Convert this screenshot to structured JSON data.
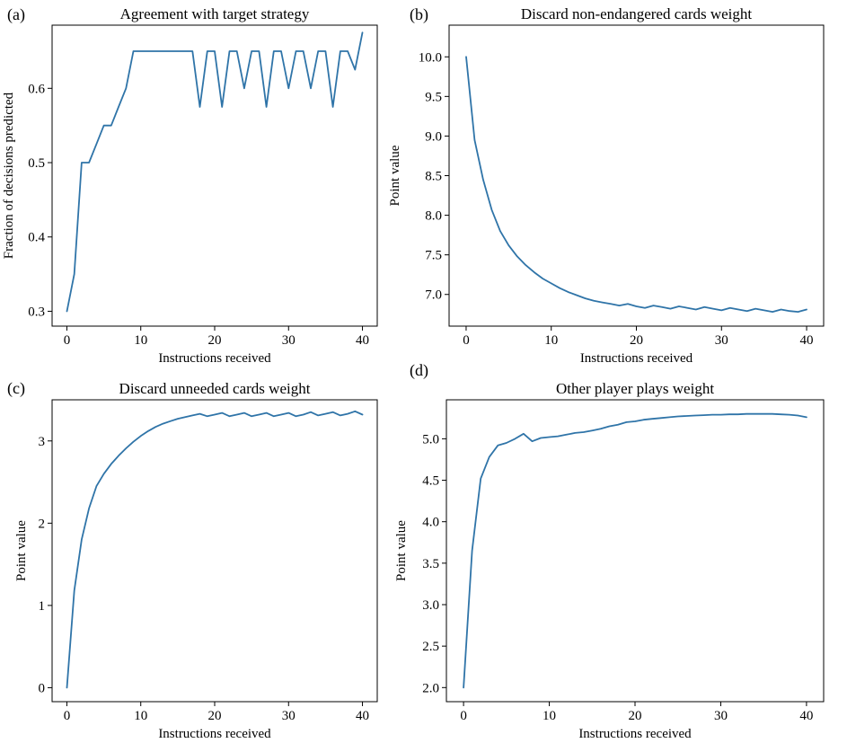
{
  "chart_data": [
    {
      "panel_label": "(a)",
      "type": "line",
      "title": "Agreement with target strategy",
      "xlabel": "Instructions received",
      "ylabel": "Fraction of decisions predicted",
      "xlim": [
        -2,
        42
      ],
      "ylim": [
        0.28,
        0.685
      ],
      "xticks": [
        0,
        10,
        20,
        30,
        40
      ],
      "yticks": [
        0.3,
        0.4,
        0.5,
        0.6
      ],
      "ytick_labels": [
        "0.3",
        "0.4",
        "0.5",
        "0.6"
      ],
      "series": [
        {
          "name": "agreement",
          "color": "#2f74a8",
          "x": [
            0,
            1,
            2,
            3,
            4,
            5,
            6,
            7,
            8,
            9,
            10,
            11,
            12,
            13,
            14,
            15,
            16,
            17,
            18,
            19,
            20,
            21,
            22,
            23,
            24,
            25,
            26,
            27,
            28,
            29,
            30,
            31,
            32,
            33,
            34,
            35,
            36,
            37,
            38,
            39,
            40
          ],
          "y": [
            0.3,
            0.35,
            0.5,
            0.5,
            0.525,
            0.55,
            0.55,
            0.575,
            0.6,
            0.65,
            0.65,
            0.65,
            0.65,
            0.65,
            0.65,
            0.65,
            0.65,
            0.65,
            0.575,
            0.65,
            0.65,
            0.575,
            0.65,
            0.65,
            0.6,
            0.65,
            0.65,
            0.575,
            0.65,
            0.65,
            0.6,
            0.65,
            0.65,
            0.6,
            0.65,
            0.65,
            0.575,
            0.65,
            0.65,
            0.625,
            0.675
          ]
        }
      ]
    },
    {
      "panel_label": "(b)",
      "type": "line",
      "title": "Discard non-endangered cards weight",
      "xlabel": "Instructions received",
      "ylabel": "Point value",
      "xlim": [
        -2,
        42
      ],
      "ylim": [
        6.6,
        10.4
      ],
      "xticks": [
        0,
        10,
        20,
        30,
        40
      ],
      "yticks": [
        7.0,
        7.5,
        8.0,
        8.5,
        9.0,
        9.5,
        10.0
      ],
      "ytick_labels": [
        "7.0",
        "7.5",
        "8.0",
        "8.5",
        "9.0",
        "9.5",
        "10.0"
      ],
      "series": [
        {
          "name": "weight",
          "color": "#2f74a8",
          "x": [
            0,
            1,
            2,
            3,
            4,
            5,
            6,
            7,
            8,
            9,
            10,
            11,
            12,
            13,
            14,
            15,
            16,
            17,
            18,
            19,
            20,
            21,
            22,
            23,
            24,
            25,
            26,
            27,
            28,
            29,
            30,
            31,
            32,
            33,
            34,
            35,
            36,
            37,
            38,
            39,
            40
          ],
          "y": [
            10.0,
            8.95,
            8.45,
            8.07,
            7.8,
            7.62,
            7.48,
            7.37,
            7.28,
            7.2,
            7.14,
            7.08,
            7.03,
            6.99,
            6.95,
            6.92,
            6.9,
            6.88,
            6.86,
            6.88,
            6.85,
            6.83,
            6.86,
            6.84,
            6.82,
            6.85,
            6.83,
            6.81,
            6.84,
            6.82,
            6.8,
            6.83,
            6.81,
            6.79,
            6.82,
            6.8,
            6.78,
            6.81,
            6.79,
            6.78,
            6.81
          ]
        }
      ]
    },
    {
      "panel_label": "(c)",
      "type": "line",
      "title": "Discard unneeded cards weight",
      "xlabel": "Instructions received",
      "ylabel": "Point value",
      "xlim": [
        -2,
        42
      ],
      "ylim": [
        -0.17,
        3.5
      ],
      "xticks": [
        0,
        10,
        20,
        30,
        40
      ],
      "yticks": [
        0,
        1,
        2,
        3
      ],
      "ytick_labels": [
        "0",
        "1",
        "2",
        "3"
      ],
      "series": [
        {
          "name": "weight",
          "color": "#2f74a8",
          "x": [
            0,
            1,
            2,
            3,
            4,
            5,
            6,
            7,
            8,
            9,
            10,
            11,
            12,
            13,
            14,
            15,
            16,
            17,
            18,
            19,
            20,
            21,
            22,
            23,
            24,
            25,
            26,
            27,
            28,
            29,
            30,
            31,
            32,
            33,
            34,
            35,
            36,
            37,
            38,
            39,
            40
          ],
          "y": [
            0.0,
            1.18,
            1.8,
            2.18,
            2.45,
            2.6,
            2.72,
            2.82,
            2.91,
            2.99,
            3.06,
            3.12,
            3.17,
            3.21,
            3.24,
            3.27,
            3.29,
            3.31,
            3.33,
            3.3,
            3.32,
            3.34,
            3.3,
            3.32,
            3.34,
            3.3,
            3.32,
            3.34,
            3.3,
            3.32,
            3.34,
            3.3,
            3.32,
            3.35,
            3.31,
            3.33,
            3.35,
            3.31,
            3.33,
            3.36,
            3.32
          ]
        }
      ]
    },
    {
      "panel_label": "(d)",
      "type": "line",
      "title": "Other player plays weight",
      "xlabel": "Instructions received",
      "ylabel": "Point value",
      "xlim": [
        -2,
        42
      ],
      "ylim": [
        1.83,
        5.47
      ],
      "xticks": [
        0,
        10,
        20,
        30,
        40
      ],
      "yticks": [
        2.0,
        2.5,
        3.0,
        3.5,
        4.0,
        4.5,
        5.0
      ],
      "ytick_labels": [
        "2.0",
        "2.5",
        "3.0",
        "3.5",
        "4.0",
        "4.5",
        "5.0"
      ],
      "series": [
        {
          "name": "weight",
          "color": "#2f74a8",
          "x": [
            0,
            1,
            2,
            3,
            4,
            5,
            6,
            7,
            8,
            9,
            10,
            11,
            12,
            13,
            14,
            15,
            16,
            17,
            18,
            19,
            20,
            21,
            22,
            23,
            24,
            25,
            26,
            27,
            28,
            29,
            30,
            31,
            32,
            33,
            34,
            35,
            36,
            37,
            38,
            39,
            40
          ],
          "y": [
            2.0,
            3.65,
            4.52,
            4.78,
            4.92,
            4.95,
            5.0,
            5.06,
            4.97,
            5.01,
            5.02,
            5.03,
            5.05,
            5.07,
            5.08,
            5.1,
            5.12,
            5.15,
            5.17,
            5.2,
            5.21,
            5.23,
            5.24,
            5.25,
            5.26,
            5.27,
            5.275,
            5.28,
            5.285,
            5.29,
            5.29,
            5.295,
            5.295,
            5.3,
            5.3,
            5.3,
            5.3,
            5.295,
            5.29,
            5.28,
            5.26
          ]
        }
      ]
    }
  ]
}
